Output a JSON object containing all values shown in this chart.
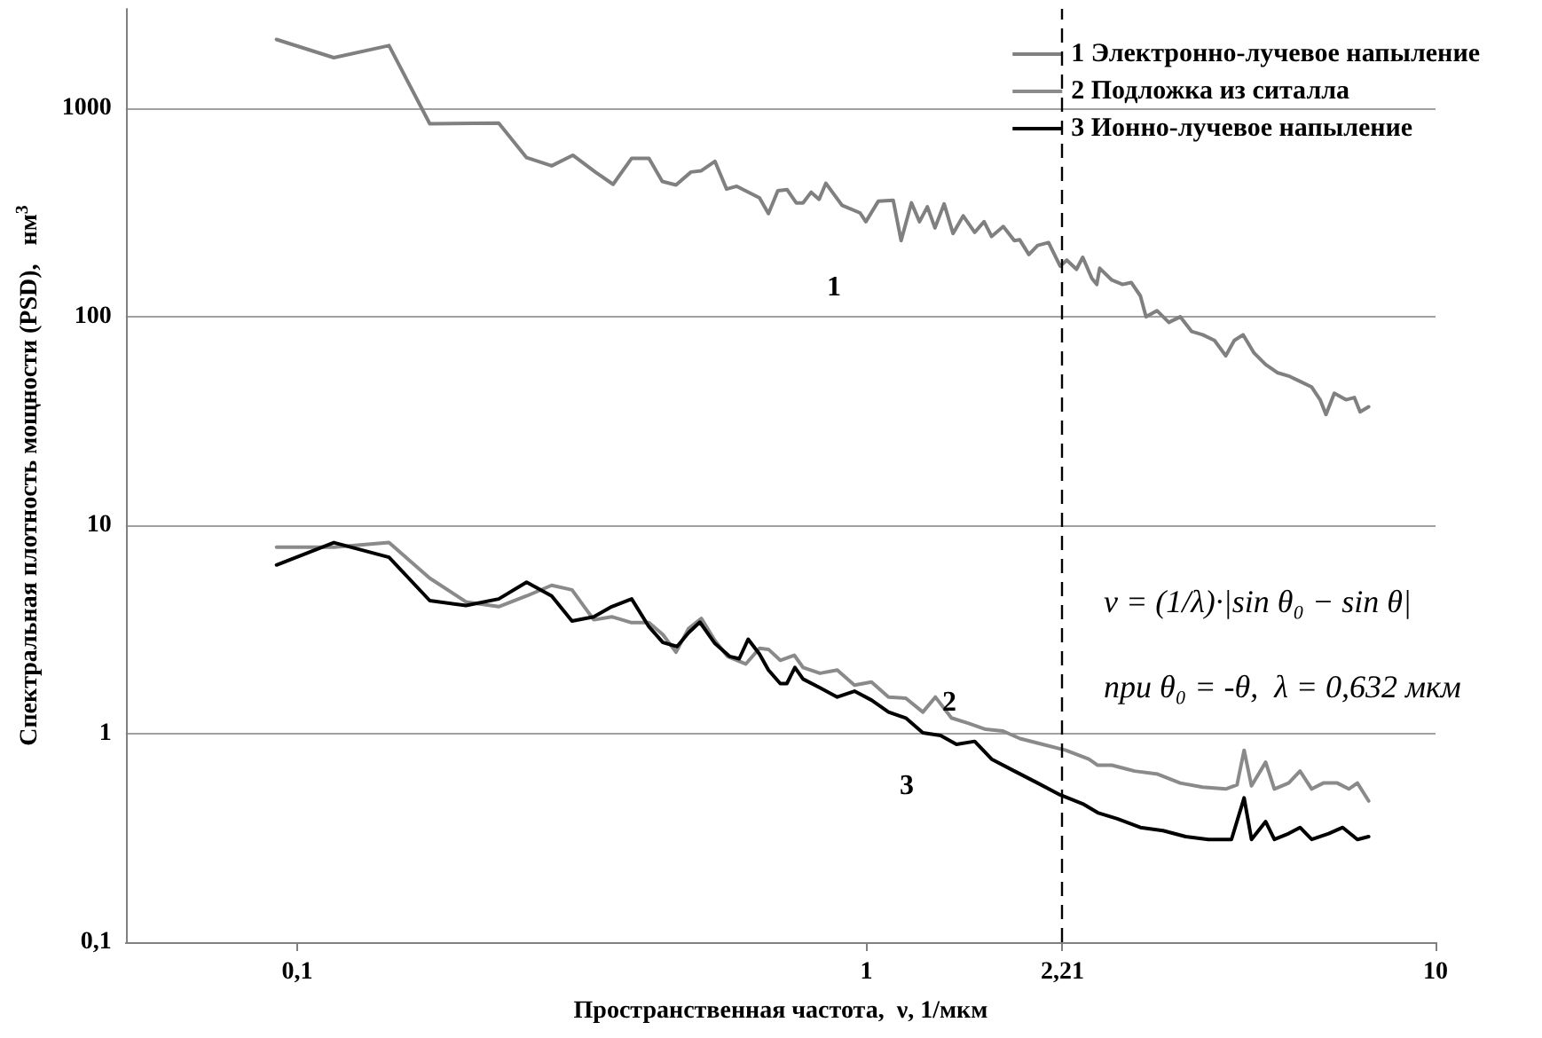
{
  "chart_data": {
    "type": "line",
    "xlabel": "Пространственная частота,  ν, 1/мкм",
    "ylabel": "Спектральная плотность мощности (PSD),   нм$^{3}$",
    "log": "xy",
    "grid": "y",
    "legend": "top right",
    "marker": "none",
    "line_style": "solid",
    "xlim": [
      0.05,
      10
    ],
    "xticks": [
      {
        "value": 0.1,
        "label": "0,1"
      },
      1,
      {
        "value": 2.21,
        "label": "2,21"
      },
      10
    ],
    "ylim": [
      0.1,
      3000
    ],
    "yticks": [
      {
        "value": 0.1,
        "label": "0,1"
      },
      1,
      10,
      100,
      1000
    ],
    "series": [
      {
        "name": "1 Электронно-лучевое напыление",
        "color": "#808080",
        "x": [
          0.092,
          0.116,
          0.145,
          0.171,
          0.226,
          0.253,
          0.28,
          0.305,
          0.334,
          0.359,
          0.387,
          0.415,
          0.438,
          0.463,
          0.492,
          0.513,
          0.542,
          0.568,
          0.592,
          0.649,
          0.673,
          0.699,
          0.726,
          0.753,
          0.774,
          0.8,
          0.826,
          0.849,
          0.906,
          0.975,
          0.998,
          1.05,
          1.115,
          1.151,
          1.2,
          1.24,
          1.28,
          1.32,
          1.37,
          1.42,
          1.48,
          1.55,
          1.61,
          1.66,
          1.74,
          1.82,
          1.86,
          1.93,
          2.0,
          2.09,
          2.19,
          2.25,
          2.34,
          2.4,
          2.49,
          2.54,
          2.57,
          2.7,
          2.82,
          2.92,
          3.03,
          3.1,
          3.24,
          3.4,
          3.56,
          3.73,
          3.9,
          4.09,
          4.28,
          4.43,
          4.59,
          4.8,
          5.03,
          5.27,
          5.52,
          5.78,
          6.06,
          6.27,
          6.42,
          6.64,
          6.96,
          7.2,
          7.37,
          7.63
        ],
        "values": [
          2140,
          1750,
          2000,
          843,
          849,
          580,
          530,
          596,
          495,
          432,
          576,
          576,
          446,
          429,
          495,
          502,
          557,
          410,
          423,
          372,
          313,
          402,
          407,
          352,
          352,
          396,
          366,
          437,
          343,
          315,
          286,
          359,
          362,
          232,
          352,
          286,
          337,
          267,
          348,
          251,
          305,
          254,
          286,
          243,
          271,
          232,
          234,
          199,
          220,
          227,
          175,
          187,
          169,
          193,
          153,
          143,
          171,
          150,
          143,
          146,
          126,
          100,
          107,
          94,
          100,
          85,
          82,
          77,
          65,
          77,
          82,
          67,
          59,
          54,
          52,
          49,
          46,
          40,
          34,
          43,
          40,
          41,
          35,
          37
        ]
      },
      {
        "name": "2 Подложка из ситалла",
        "color": "#8a8a8a",
        "x": [
          0.092,
          0.116,
          0.145,
          0.171,
          0.198,
          0.226,
          0.253,
          0.28,
          0.304,
          0.332,
          0.357,
          0.387,
          0.415,
          0.439,
          0.463,
          0.487,
          0.513,
          0.542,
          0.57,
          0.614,
          0.649,
          0.673,
          0.706,
          0.747,
          0.774,
          0.829,
          0.889,
          0.953,
          1.021,
          1.094,
          1.173,
          1.257,
          1.322,
          1.411,
          1.513,
          1.621,
          1.738,
          1.862,
          2.04,
          2.24,
          2.46,
          2.55,
          2.7,
          2.96,
          3.25,
          3.56,
          3.9,
          4.28,
          4.48,
          4.61,
          4.75,
          5.03,
          5.21,
          5.52,
          5.78,
          6.06,
          6.35,
          6.72,
          7.04,
          7.29,
          7.63
        ],
        "values": [
          7.85,
          7.85,
          8.26,
          5.57,
          4.29,
          4.07,
          4.58,
          5.15,
          4.9,
          3.52,
          3.64,
          3.41,
          3.41,
          2.99,
          2.46,
          3.19,
          3.57,
          2.8,
          2.35,
          2.16,
          2.57,
          2.54,
          2.25,
          2.38,
          2.08,
          1.95,
          2.02,
          1.71,
          1.77,
          1.5,
          1.48,
          1.27,
          1.5,
          1.19,
          1.12,
          1.05,
          1.03,
          0.948,
          0.889,
          0.833,
          0.755,
          0.706,
          0.706,
          0.662,
          0.64,
          0.58,
          0.554,
          0.543,
          0.569,
          0.833,
          0.562,
          0.73,
          0.543,
          0.58,
          0.662,
          0.543,
          0.58,
          0.58,
          0.543,
          0.58,
          0.476
        ]
      },
      {
        "name": "3 Ионно-лучевое напыление",
        "color": "#000000",
        "x": [
          0.092,
          0.116,
          0.145,
          0.171,
          0.198,
          0.226,
          0.253,
          0.28,
          0.304,
          0.332,
          0.357,
          0.387,
          0.415,
          0.439,
          0.465,
          0.487,
          0.51,
          0.542,
          0.575,
          0.598,
          0.62,
          0.649,
          0.673,
          0.706,
          0.725,
          0.749,
          0.774,
          0.829,
          0.889,
          0.953,
          1.021,
          1.094,
          1.173,
          1.257,
          1.35,
          1.44,
          1.55,
          1.66,
          1.82,
          2.0,
          2.19,
          2.4,
          2.55,
          2.76,
          3.03,
          3.32,
          3.64,
          3.99,
          4.38,
          4.61,
          4.75,
          5.03,
          5.21,
          5.52,
          5.78,
          6.06,
          6.49,
          6.87,
          7.29,
          7.63
        ],
        "values": [
          6.45,
          8.26,
          7.02,
          4.35,
          4.12,
          4.43,
          5.33,
          4.58,
          3.47,
          3.64,
          4.07,
          4.43,
          3.26,
          2.74,
          2.62,
          3.05,
          3.43,
          2.71,
          2.35,
          2.29,
          2.84,
          2.41,
          2.02,
          1.74,
          1.74,
          2.08,
          1.83,
          1.66,
          1.5,
          1.6,
          1.45,
          1.27,
          1.19,
          1.01,
          0.98,
          0.889,
          0.919,
          0.755,
          0.662,
          0.58,
          0.509,
          0.461,
          0.418,
          0.391,
          0.355,
          0.343,
          0.321,
          0.311,
          0.311,
          0.492,
          0.311,
          0.379,
          0.311,
          0.332,
          0.355,
          0.311,
          0.332,
          0.355,
          0.311,
          0.321
        ]
      }
    ],
    "ref_lines": [
      {
        "axis": "x",
        "value": 2.21,
        "color": "#000000",
        "line_style": "dashed"
      }
    ],
    "annotations": [
      "1",
      "2",
      "3",
      "ν = (1/λ)·|sin θ₀ − sin θ|",
      "при θ₀ = -θ,  λ = 0,632 мкм"
    ]
  }
}
